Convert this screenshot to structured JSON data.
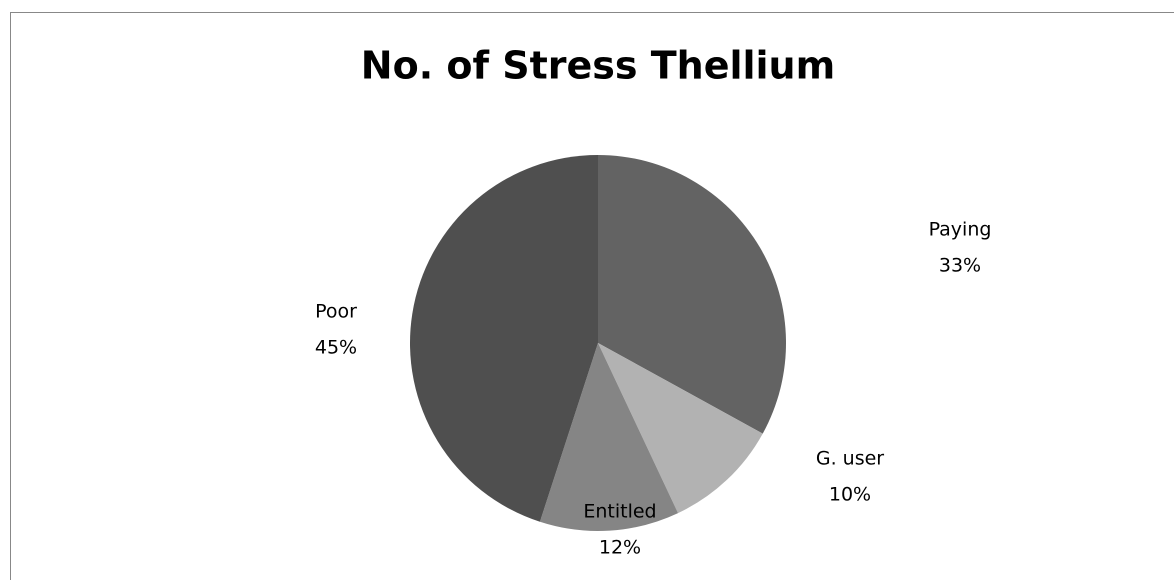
{
  "chart_data": {
    "type": "pie",
    "title": "No. of Stress Thellium",
    "categories": [
      "Paying",
      "G. user",
      "Entitled",
      "Poor"
    ],
    "values": [
      33,
      10,
      12,
      45
    ],
    "value_labels": [
      "33%",
      "10%",
      "12%",
      "45%"
    ],
    "colors": [
      "#636363",
      "#b2b2b2",
      "#858585",
      "#4f4f4f"
    ]
  }
}
